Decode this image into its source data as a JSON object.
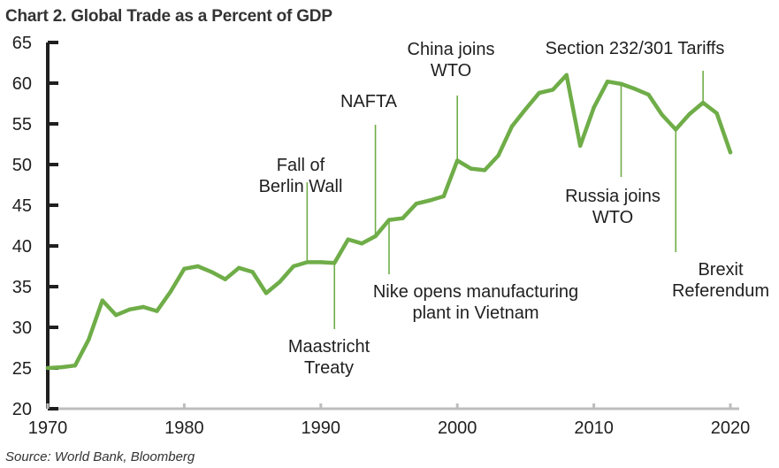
{
  "chart_data": {
    "type": "line",
    "title": "Chart 2. Global Trade as a Percent of GDP",
    "xlabel": "",
    "ylabel": "",
    "xlim": [
      1970,
      2020
    ],
    "ylim": [
      20,
      65
    ],
    "xticks": [
      1970,
      1980,
      1990,
      2000,
      2010,
      2020
    ],
    "yticks": [
      20,
      25,
      30,
      35,
      40,
      45,
      50,
      55,
      60,
      65
    ],
    "line_color": "#6fad48",
    "axis_color": "#1f1f1f",
    "annotation_line_color": "#6fad48",
    "series": [
      {
        "name": "Global Trade (% of GDP)",
        "x": [
          1970,
          1971,
          1972,
          1973,
          1974,
          1975,
          1976,
          1977,
          1978,
          1979,
          1980,
          1981,
          1982,
          1983,
          1984,
          1985,
          1986,
          1987,
          1988,
          1989,
          1990,
          1991,
          1992,
          1993,
          1994,
          1995,
          1996,
          1997,
          1998,
          1999,
          2000,
          2001,
          2002,
          2003,
          2004,
          2005,
          2006,
          2007,
          2008,
          2009,
          2010,
          2011,
          2012,
          2013,
          2014,
          2015,
          2016,
          2017,
          2018,
          2019,
          2020
        ],
        "values": [
          25.0,
          25.1,
          25.3,
          28.5,
          33.3,
          31.5,
          32.2,
          32.5,
          32.0,
          34.4,
          37.2,
          37.5,
          36.8,
          35.9,
          37.3,
          36.8,
          34.2,
          35.6,
          37.5,
          38.0,
          38.0,
          37.9,
          40.8,
          40.3,
          41.2,
          43.2,
          43.4,
          45.2,
          45.6,
          46.1,
          50.5,
          49.5,
          49.3,
          51.1,
          54.7,
          56.8,
          58.8,
          59.2,
          61.0,
          52.3,
          57.0,
          60.2,
          59.9,
          59.3,
          58.6,
          56.1,
          54.3,
          56.2,
          57.6,
          56.3,
          51.5
        ]
      }
    ],
    "annotations": [
      {
        "lines": [
          "Fall of",
          "Berlin Wall"
        ],
        "year": 1989,
        "direction": "up"
      },
      {
        "lines": [
          "Maastricht",
          "Treaty"
        ],
        "year": 1991,
        "direction": "down"
      },
      {
        "lines": [
          "NAFTA"
        ],
        "year": 1994,
        "direction": "up"
      },
      {
        "lines": [
          "Nike opens manufacturing",
          "plant in Vietnam"
        ],
        "year": 1995,
        "direction": "down"
      },
      {
        "lines": [
          "China joins",
          "WTO"
        ],
        "year": 2000,
        "direction": "up"
      },
      {
        "lines": [
          "Russia joins",
          "WTO"
        ],
        "year": 2012,
        "direction": "down"
      },
      {
        "lines": [
          "Section 232/301 Tariffs"
        ],
        "year": 2018,
        "direction": "up"
      },
      {
        "lines": [
          "Brexit",
          "Referendum"
        ],
        "year": 2016,
        "direction": "down"
      }
    ],
    "source": "Source: World Bank, Bloomberg"
  }
}
